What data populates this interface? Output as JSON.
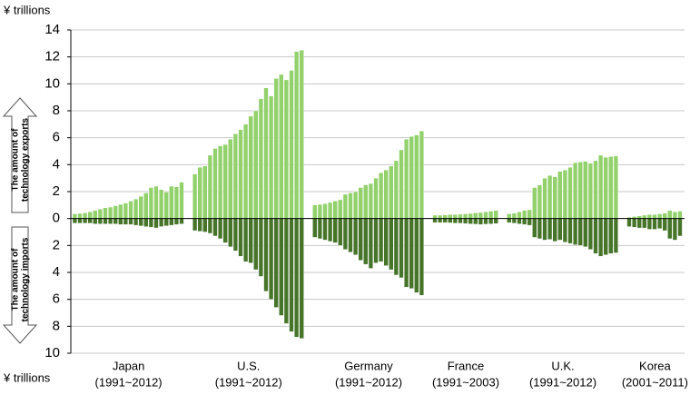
{
  "chart_data": {
    "type": "bar",
    "y_unit_top": "¥ trillions",
    "y_unit_bottom": "¥ trillions",
    "exports_label": [
      "The amount of",
      "technology exports"
    ],
    "imports_label": [
      "The amount of",
      "technology imports"
    ],
    "export_color": "#92d16c",
    "import_color": "#46752a",
    "ylim": [
      -10,
      14
    ],
    "yticks": [
      {
        "value": -10,
        "label": "10"
      },
      {
        "value": -8,
        "label": "8"
      },
      {
        "value": -6,
        "label": "6"
      },
      {
        "value": -4,
        "label": "4"
      },
      {
        "value": -2,
        "label": "2"
      },
      0,
      2,
      4,
      6,
      8,
      10,
      12,
      14
    ],
    "grid": true,
    "groups": [
      {
        "name": "Japan",
        "period": "(1991~2012)",
        "exports": [
          0.35,
          0.38,
          0.42,
          0.5,
          0.6,
          0.7,
          0.8,
          0.85,
          0.95,
          1.05,
          1.15,
          1.3,
          1.45,
          1.65,
          1.9,
          2.3,
          2.4,
          2.15,
          1.95,
          2.4,
          2.35,
          2.7
        ],
        "imports": [
          -0.35,
          -0.35,
          -0.35,
          -0.35,
          -0.4,
          -0.4,
          -0.4,
          -0.4,
          -0.4,
          -0.45,
          -0.45,
          -0.45,
          -0.5,
          -0.55,
          -0.6,
          -0.65,
          -0.7,
          -0.6,
          -0.55,
          -0.5,
          -0.45,
          -0.4
        ]
      },
      {
        "name": "U.S.",
        "period": "(1991~2012)",
        "exports": [
          3.3,
          3.8,
          3.9,
          4.7,
          5.2,
          5.4,
          5.5,
          5.9,
          6.3,
          6.6,
          7.0,
          7.6,
          8.0,
          8.9,
          9.7,
          9.1,
          10.4,
          10.7,
          10.3,
          11.0,
          12.4,
          12.5
        ],
        "imports": [
          -0.9,
          -0.95,
          -1.0,
          -1.1,
          -1.3,
          -1.5,
          -1.8,
          -2.1,
          -2.4,
          -2.8,
          -3.2,
          -3.3,
          -3.8,
          -4.3,
          -5.4,
          -6.0,
          -6.6,
          -7.2,
          -7.8,
          -8.4,
          -8.8,
          -8.9
        ]
      },
      {
        "name": "Germany",
        "period": "(1991~2012)",
        "exports": [
          1.0,
          1.05,
          1.1,
          1.2,
          1.3,
          1.4,
          1.8,
          1.9,
          2.0,
          2.3,
          2.5,
          2.6,
          3.0,
          3.4,
          3.6,
          3.9,
          4.3,
          5.1,
          5.9,
          6.1,
          6.2,
          6.5
        ],
        "imports": [
          -1.4,
          -1.5,
          -1.6,
          -1.7,
          -1.8,
          -2.0,
          -2.3,
          -2.5,
          -2.7,
          -3.1,
          -3.4,
          -3.7,
          -3.3,
          -3.2,
          -3.5,
          -3.8,
          -4.2,
          -4.4,
          -5.1,
          -5.2,
          -5.5,
          -5.7
        ]
      },
      {
        "name": "France",
        "period": "(1991~2003)",
        "exports": [
          0.25,
          0.25,
          0.27,
          0.3,
          0.3,
          0.32,
          0.35,
          0.38,
          0.42,
          0.45,
          0.5,
          0.55,
          0.6
        ],
        "imports": [
          -0.3,
          -0.3,
          -0.3,
          -0.32,
          -0.35,
          -0.35,
          -0.38,
          -0.4,
          -0.42,
          -0.45,
          -0.42,
          -0.4,
          -0.38
        ]
      },
      {
        "name": "U.K.",
        "period": "(1991~2012)",
        "exports": [
          0.35,
          0.4,
          0.5,
          0.6,
          0.65,
          2.3,
          2.5,
          3.0,
          3.2,
          3.1,
          3.5,
          3.6,
          3.8,
          4.15,
          4.2,
          4.25,
          4.1,
          4.3,
          4.7,
          4.55,
          4.6,
          4.65
        ],
        "imports": [
          -0.3,
          -0.35,
          -0.4,
          -0.45,
          -0.5,
          -1.4,
          -1.5,
          -1.6,
          -1.55,
          -1.7,
          -1.6,
          -1.75,
          -1.85,
          -1.95,
          -2.0,
          -2.1,
          -2.3,
          -2.6,
          -2.8,
          -2.7,
          -2.6,
          -2.55
        ]
      },
      {
        "name": "Korea",
        "period": "(2001~2011)",
        "exports": [
          0.1,
          0.15,
          0.2,
          0.25,
          0.3,
          0.3,
          0.35,
          0.4,
          0.6,
          0.5,
          0.55
        ],
        "imports": [
          -0.6,
          -0.65,
          -0.7,
          -0.7,
          -0.8,
          -0.8,
          -0.75,
          -0.9,
          -1.5,
          -1.6,
          -1.3
        ]
      }
    ]
  }
}
